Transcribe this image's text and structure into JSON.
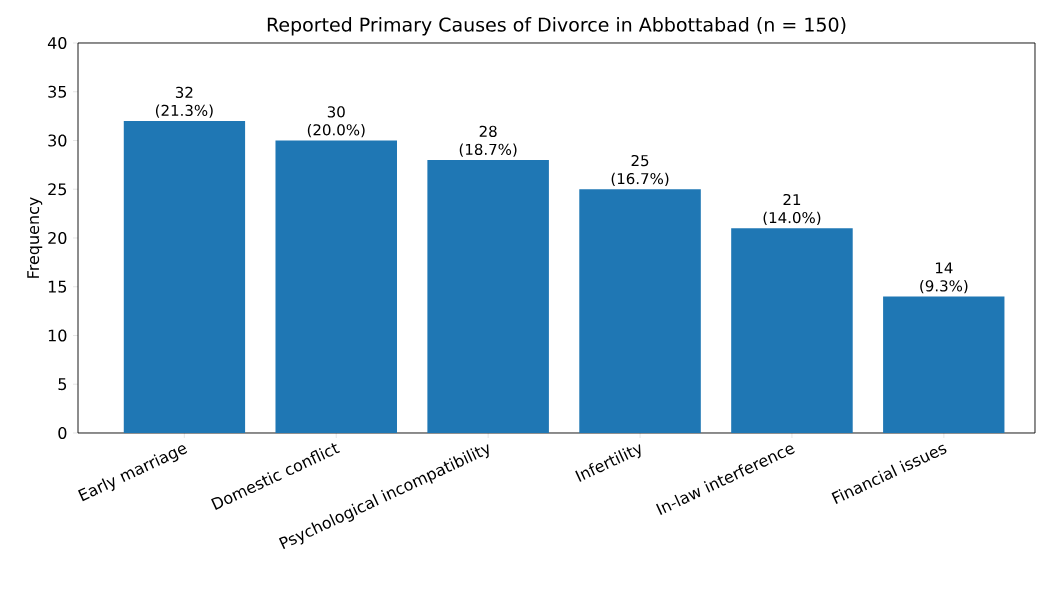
{
  "chart_data": {
    "type": "bar",
    "title": "Reported Primary Causes of Divorce in Abbottabad (n = 150)",
    "ylabel": "Frequency",
    "categories": [
      "Early marriage",
      "Domestic conflict",
      "Psychological incompatibility",
      "Infertility",
      "In-law interference",
      "Financial issues"
    ],
    "values": [
      32,
      30,
      28,
      25,
      21,
      14
    ],
    "value_labels": [
      "32 (21.3%)",
      "30 (20.0%)",
      "28 (18.7%)",
      "25 (16.7%)",
      "21 (14.0%)",
      "14 (9.3%)"
    ],
    "color": "#1f77b4",
    "ylim": [
      0,
      40
    ],
    "yticks": [
      0,
      5,
      10,
      15,
      20,
      25,
      30,
      35,
      40
    ],
    "grid": false
  }
}
